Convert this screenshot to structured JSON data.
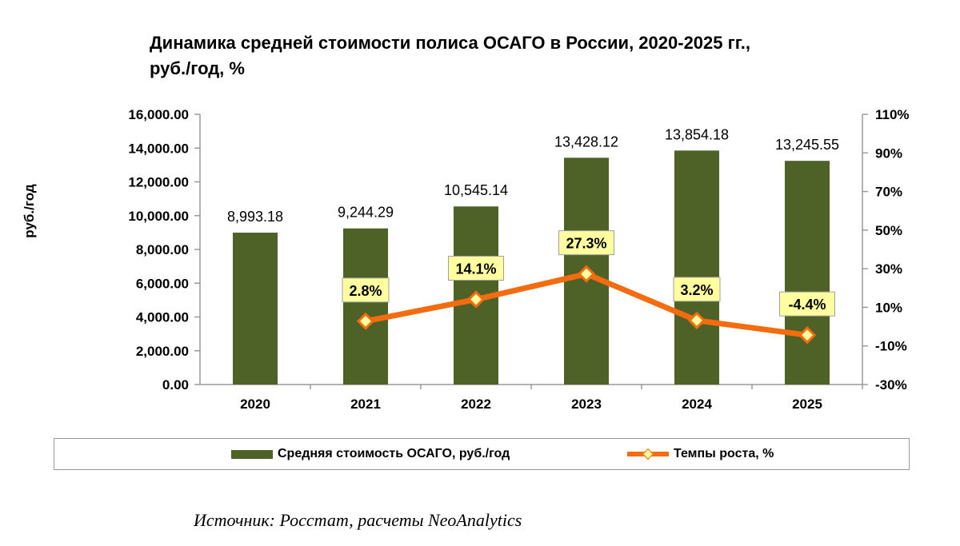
{
  "title_line1": "Динамика средней стоимости полиса ОСАГО в России, 2020-2025 гг.,",
  "title_line2": "руб./год, %",
  "source": "Источник: Росстат, расчеты NeoAnalytics",
  "colors": {
    "bar": "#4e6228",
    "line": "#f36c0f",
    "marker_fill": "#ffffa0",
    "label_box_fill": "#ffffa0",
    "label_box_stroke": "#a0a0a0"
  },
  "chart_data": {
    "type": "bar",
    "title": "Динамика средней стоимости полиса ОСАГО в России, 2020-2025 гг., руб./год, %",
    "categories": [
      "2020",
      "2021",
      "2022",
      "2023",
      "2024",
      "2025"
    ],
    "ylabel": "руб./год",
    "ylim": [
      0,
      16000
    ],
    "y_ticks": [
      "16,000.00",
      "14,000.00",
      "12,000.00",
      "10,000.00",
      "8,000.00",
      "6,000.00",
      "4,000.00",
      "2,000.00",
      "0.00"
    ],
    "y2lim": [
      -30,
      110
    ],
    "y2_ticks": [
      "110%",
      "90%",
      "70%",
      "50%",
      "30%",
      "10%",
      "-10%",
      "-30%"
    ],
    "grid": false,
    "legend_position": "bottom",
    "series": [
      {
        "name": "Средняя стоимость ОСАГО, руб./год",
        "type": "bar",
        "axis": "left",
        "values": [
          8993.18,
          9244.29,
          10545.14,
          13428.12,
          13854.18,
          13245.55
        ],
        "labels": [
          "8,993.18",
          "9,244.29",
          "10,545.14",
          "13,428.12",
          "13,854.18",
          "13,245.55"
        ]
      },
      {
        "name": "Темпы роста, %",
        "type": "line",
        "axis": "right",
        "values": [
          null,
          2.8,
          14.1,
          27.3,
          3.2,
          -4.4
        ],
        "labels": [
          "",
          "2.8%",
          "14.1%",
          "27.3%",
          "3.2%",
          "-4.4%"
        ]
      }
    ]
  }
}
